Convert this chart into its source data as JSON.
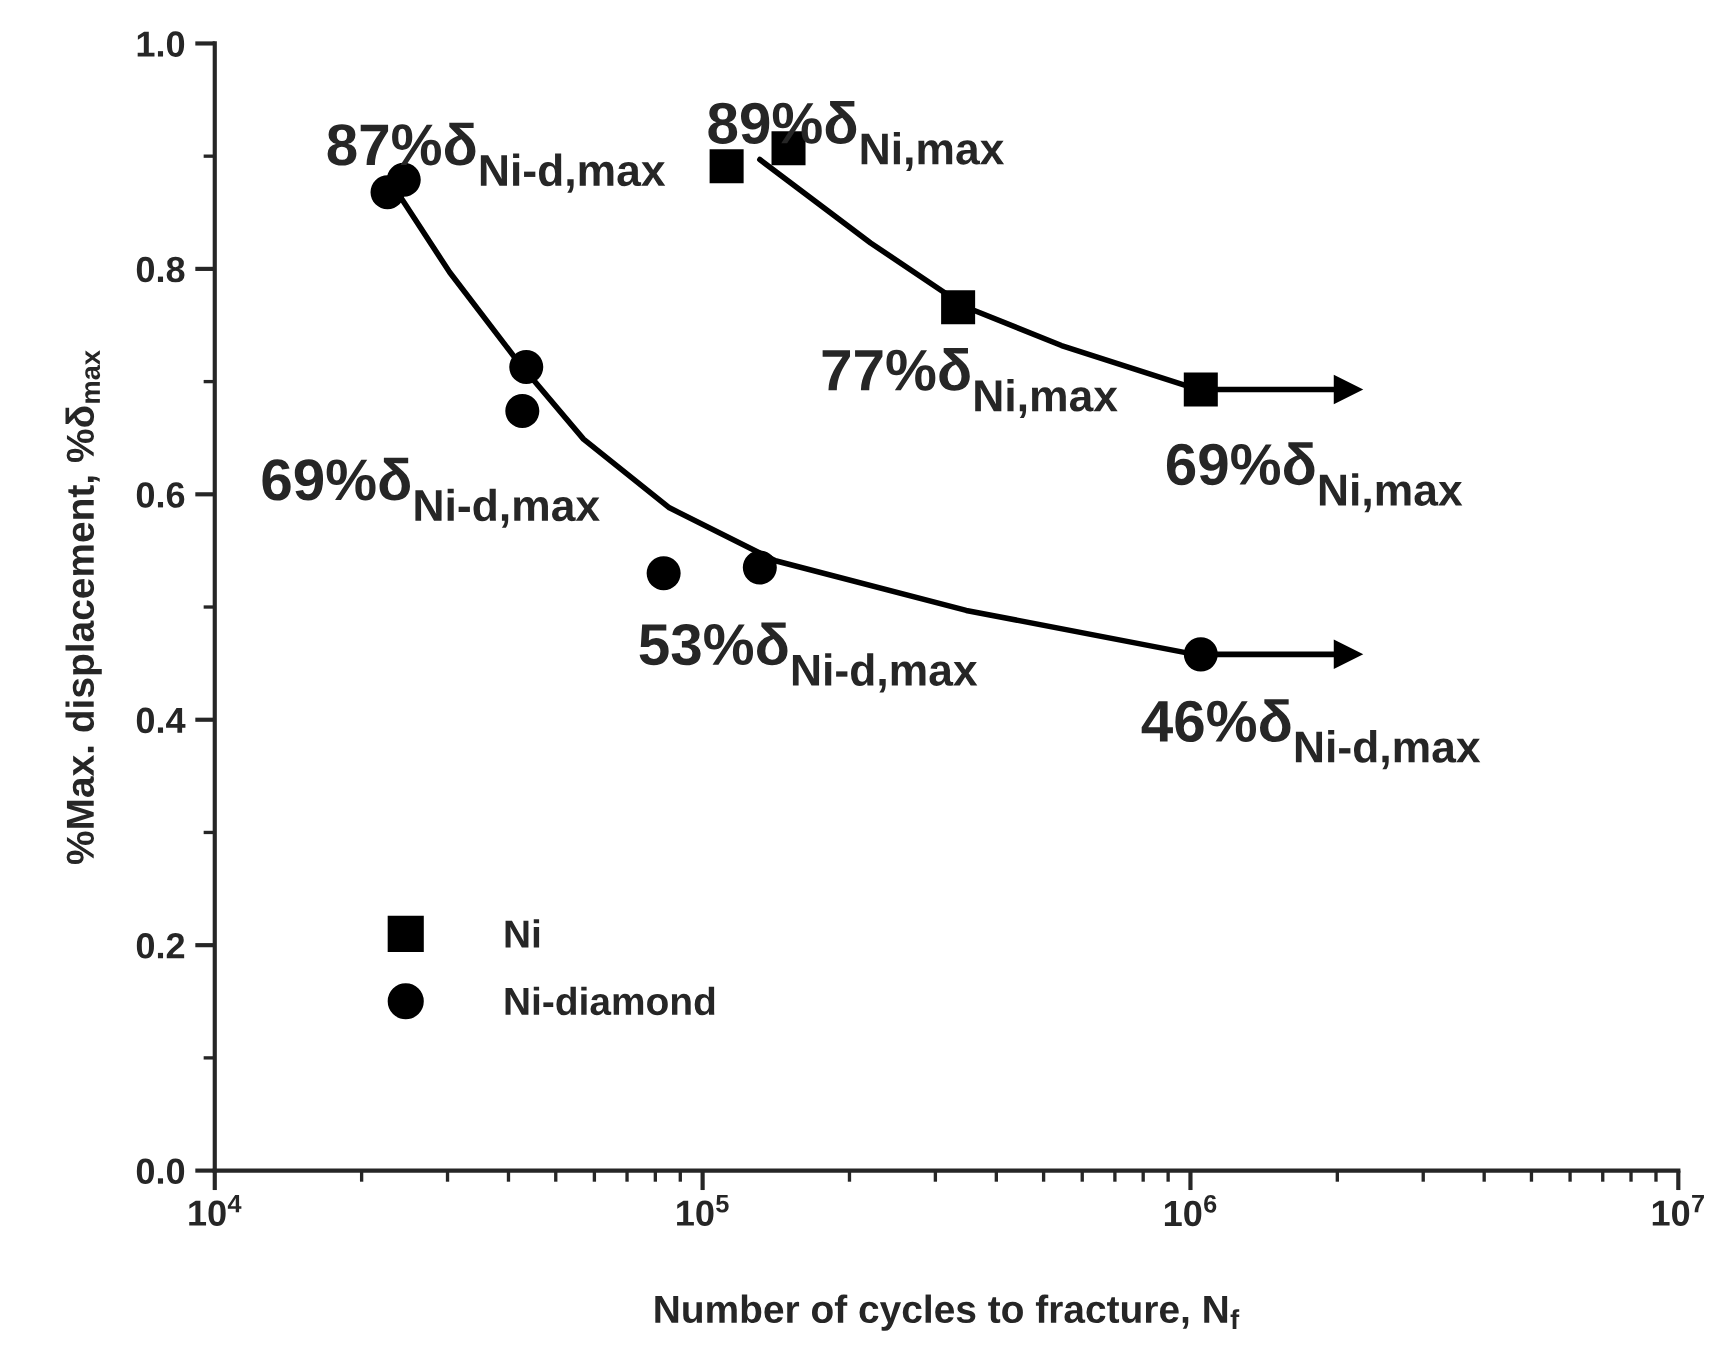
{
  "chart_data": {
    "type": "scatter",
    "xlabel": "Number of cycles to fracture, N$_{f}$",
    "ylabel": "%Max. displacement, %δ$_{max}$",
    "log": "x",
    "xlim": [
      10000,
      10000000
    ],
    "ylim": [
      0,
      1.0
    ],
    "xticks": [
      {
        "value": 10000,
        "label": "10$^{4}$"
      },
      {
        "value": 100000,
        "label": "10$^{5}$"
      },
      {
        "value": 1000000,
        "label": "10$^{6}$"
      },
      {
        "value": 10000000,
        "label": "10$^{7}$"
      }
    ],
    "yticks": [
      {
        "value": 0,
        "label": "0.0"
      },
      {
        "value": 0.2,
        "label": "0.2"
      },
      {
        "value": 0.4,
        "label": "0.4"
      },
      {
        "value": 0.6,
        "label": "0.6"
      },
      {
        "value": 0.8,
        "label": "0.8"
      },
      {
        "value": 1.0,
        "label": "1.0"
      }
    ],
    "grid": false,
    "legend": "bottom left",
    "series": [
      {
        "name": "Ni",
        "marker": "square",
        "color": "#000000",
        "x": [
          112000,
          150000,
          334000,
          1050000
        ],
        "values": [
          0.891,
          0.907,
          0.766,
          0.693
        ]
      },
      {
        "name": "Ni-diamond",
        "marker": "circle",
        "color": "#000000",
        "x": [
          22600,
          24400,
          43500,
          42700,
          83200,
          131000,
          1050000
        ],
        "values": [
          0.868,
          0.879,
          0.713,
          0.674,
          0.53,
          0.535,
          0.458
        ]
      },
      {
        "type": "line",
        "marker": "none",
        "color": "#000000",
        "x": [
          131000,
          221000,
          347000,
          544000,
          1020000
        ],
        "values": [
          0.897,
          0.823,
          0.766,
          0.732,
          0.694
        ]
      },
      {
        "type": "line",
        "marker": "none",
        "color": "#000000",
        "x": [
          23100,
          30300,
          41600,
          57000,
          85500,
          141000,
          347000,
          1020000
        ],
        "values": [
          0.875,
          0.797,
          0.719,
          0.649,
          0.588,
          0.541,
          0.497,
          0.458
        ]
      },
      {
        "type": "line",
        "marker": "triangle",
        "color": "#000000",
        "x": [
          1050000,
          2100000
        ],
        "values": [
          0.693,
          0.693
        ]
      },
      {
        "type": "line",
        "marker": "triangle",
        "color": "#000000",
        "x": [
          1050000,
          2100000
        ],
        "values": [
          0.458,
          0.458
        ]
      }
    ],
    "annotations": [
      {
        "text": "87%δ$_{Ni-d,max}$",
        "x": 24400,
        "y": 0.879
      },
      {
        "text": "89%δ$_{Ni,max}$",
        "x": 150000,
        "y": 0.907
      },
      {
        "text": "77%δ$_{Ni,max}$",
        "x": 334000,
        "y": 0.766
      },
      {
        "text": "69%δ$_{Ni,max}$",
        "x": 1050000,
        "y": 0.693
      },
      {
        "text": "69%δ$_{Ni-d,max}$",
        "x": 42700,
        "y": 0.674
      },
      {
        "text": "53%δ$_{Ni-d,max}$",
        "x": 131000,
        "y": 0.535
      },
      {
        "text": "46%δ$_{Ni-d,max}$",
        "x": 1050000,
        "y": 0.458
      }
    ]
  }
}
